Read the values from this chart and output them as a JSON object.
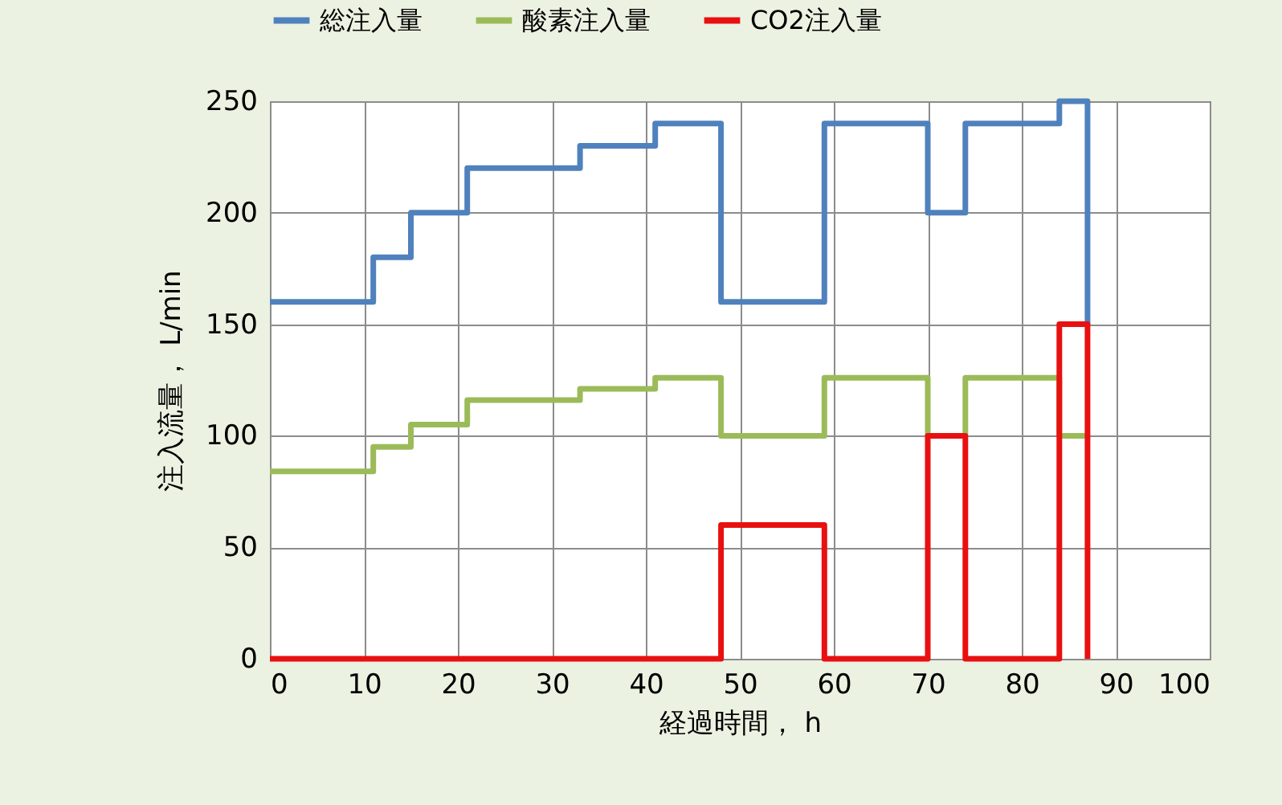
{
  "chart_data": {
    "type": "step",
    "xlabel": "経過時間， h",
    "ylabel": "注入流量， L/min",
    "xlim": [
      0,
      100
    ],
    "xticks": [
      0,
      10,
      20,
      30,
      40,
      50,
      60,
      70,
      80,
      90,
      100
    ],
    "ylim": [
      0,
      250
    ],
    "yticks": [
      0,
      50,
      100,
      150,
      200,
      250
    ],
    "grid": true,
    "legend": "top",
    "line_style": "solid",
    "series": [
      {
        "name": "総注入量",
        "color": "#4f81bd",
        "x": [
          0,
          11,
          15,
          21,
          33,
          41,
          48,
          59,
          70,
          74,
          84,
          87
        ],
        "values": [
          160,
          180,
          200,
          220,
          230,
          240,
          160,
          240,
          200,
          240,
          250,
          150
        ]
      },
      {
        "name": "酸素注入量",
        "color": "#9bbb59",
        "x": [
          0,
          11,
          15,
          21,
          33,
          41,
          48,
          59,
          70,
          74,
          84,
          87
        ],
        "values": [
          84,
          95,
          105,
          116,
          121,
          126,
          100,
          126,
          100,
          126,
          100,
          100
        ]
      },
      {
        "name": "CO2注入量",
        "color": "#e81010",
        "x": [
          0,
          48,
          59,
          70,
          74,
          84,
          87
        ],
        "values": [
          0,
          60,
          0,
          100,
          0,
          150,
          0
        ]
      }
    ]
  }
}
